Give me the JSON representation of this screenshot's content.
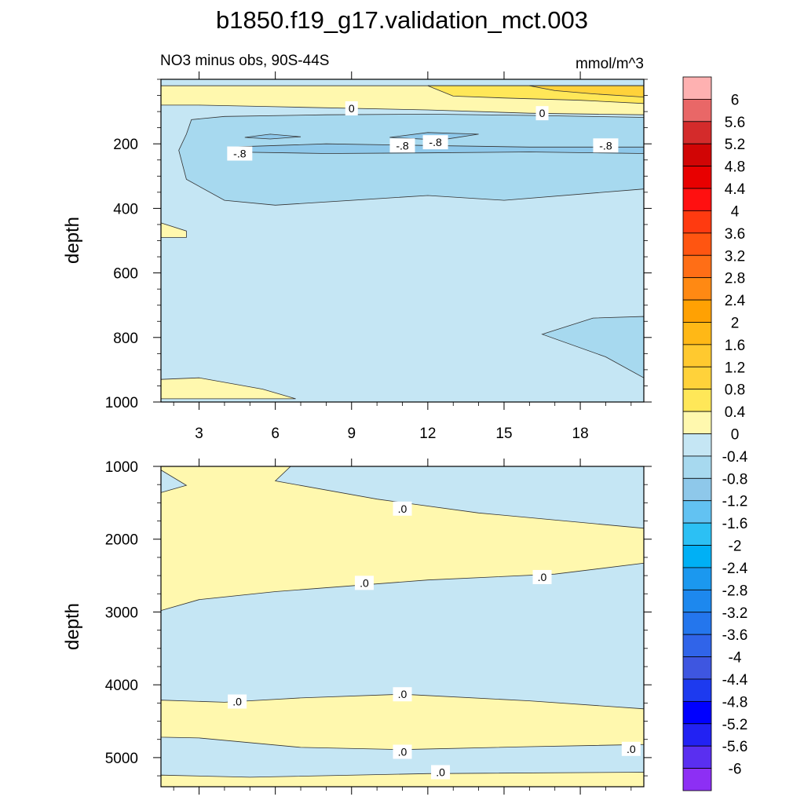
{
  "title": "b1850.f19_g17.validation_mct.003",
  "subtitle_left": "NO3 minus obs, 90S-44S",
  "subtitle_right": "mmol/m^3",
  "colors": {
    "zero_to_neg04": "#c5e6f4",
    "neg04_to_neg08": "#a7d9ef",
    "neg08_to_neg12": "#8ec8ea",
    "zero_to_04": "#fff8ae",
    "pos04_to_08": "#ffe758",
    "pos08_to_12": "#ffd23a"
  },
  "chart_data": [
    {
      "type": "heatmap",
      "panel": "upper",
      "variable": "NO3 minus obs",
      "region": "90S-44S",
      "units": "mmol/m^3",
      "ylabel": "depth",
      "ylim": [
        0,
        1000
      ],
      "y_inverted": true,
      "xlim": [
        1.5,
        20.5
      ],
      "x_ticks": [
        3,
        6,
        9,
        12,
        15,
        18
      ],
      "y_ticks": [
        200,
        400,
        600,
        800,
        1000
      ],
      "contour_labels": [
        {
          "text": "0",
          "x": 9.0,
          "y": 90
        },
        {
          "text": "0",
          "x": 16.5,
          "y": 105
        },
        {
          "text": "-.8",
          "x": 4.6,
          "y": 230
        },
        {
          "text": "-.8",
          "x": 11.0,
          "y": 205
        },
        {
          "text": "-.8",
          "x": 12.3,
          "y": 195
        },
        {
          "text": "-.8",
          "x": 19.0,
          "y": 205
        }
      ],
      "regions": [
        {
          "range": "0 to 0.4",
          "color_key": "zero_to_04",
          "poly": [
            [
              1.5,
              20
            ],
            [
              20.5,
              20
            ],
            [
              20.5,
              110
            ],
            [
              16,
              105
            ],
            [
              12,
              95
            ],
            [
              6,
              85
            ],
            [
              3,
              80
            ],
            [
              1.5,
              80
            ]
          ]
        },
        {
          "range": "0.4 to 0.8",
          "color_key": "pos04_to_08",
          "poly": [
            [
              12,
              20
            ],
            [
              20.5,
              20
            ],
            [
              20.5,
              75
            ],
            [
              18,
              65
            ],
            [
              15,
              58
            ],
            [
              13,
              52
            ]
          ]
        },
        {
          "range": "0.8 to 1.2",
          "color_key": "pos08_to_12",
          "poly": [
            [
              16,
              20
            ],
            [
              20.5,
              20
            ],
            [
              20.5,
              55
            ],
            [
              18.5,
              45
            ],
            [
              17,
              35
            ]
          ]
        },
        {
          "range": "-0.4 to -0.8",
          "color_key": "neg04_to_neg08",
          "poly": [
            [
              2.5,
              170
            ],
            [
              2.7,
              125
            ],
            [
              4,
              115
            ],
            [
              8,
              110
            ],
            [
              12,
              108
            ],
            [
              16,
              112
            ],
            [
              20.5,
              118
            ],
            [
              20.5,
              340
            ],
            [
              15,
              375
            ],
            [
              12,
              360
            ],
            [
              6,
              390
            ],
            [
              4,
              375
            ],
            [
              2.5,
              310
            ],
            [
              2.2,
              220
            ]
          ]
        },
        {
          "range": "-0.8 to -1.2",
          "color_key": "neg08_to_neg12",
          "poly": [
            [
              4.2,
              210
            ],
            [
              8,
              200
            ],
            [
              12,
              205
            ],
            [
              16,
              210
            ],
            [
              20.5,
              210
            ],
            [
              20.5,
              230
            ],
            [
              16,
              225
            ],
            [
              12,
              228
            ],
            [
              8,
              230
            ],
            [
              4.2,
              225
            ]
          ]
        },
        {
          "range": "-0.8 to -1.2",
          "color_key": "neg08_to_neg12",
          "poly": [
            [
              4.8,
              180
            ],
            [
              5.8,
              170
            ],
            [
              7,
              178
            ],
            [
              5.8,
              185
            ]
          ]
        },
        {
          "range": "-0.8 to -1.2",
          "color_key": "neg08_to_neg12",
          "poly": [
            [
              10.5,
              180
            ],
            [
              12,
              165
            ],
            [
              14,
              170
            ],
            [
              12.5,
              188
            ]
          ]
        },
        {
          "range": "-0.4 to -0.8",
          "color_key": "neg04_to_neg08",
          "poly": [
            [
              16.5,
              790
            ],
            [
              18.5,
              740
            ],
            [
              20.5,
              735
            ],
            [
              20.5,
              925
            ],
            [
              19,
              860
            ]
          ]
        },
        {
          "range": "0 to 0.4",
          "color_key": "zero_to_04",
          "poly": [
            [
              1.5,
              930
            ],
            [
              3,
              925
            ],
            [
              5.5,
              960
            ],
            [
              6.8,
              990
            ],
            [
              1.5,
              990
            ]
          ]
        },
        {
          "range": "0 to 0.4",
          "color_key": "zero_to_04",
          "poly": [
            [
              1.5,
              445
            ],
            [
              2.5,
              470
            ],
            [
              2.5,
              490
            ],
            [
              1.5,
              490
            ]
          ]
        }
      ]
    },
    {
      "type": "heatmap",
      "panel": "lower",
      "ylabel": "depth",
      "ylim": [
        1000,
        5400
      ],
      "y_inverted": true,
      "y_ticks": [
        1000,
        2000,
        3000,
        4000,
        5000
      ],
      "contour_labels": [
        {
          "text": ".0",
          "x": 11.0,
          "y": 1580
        },
        {
          "text": ".0",
          "x": 9.5,
          "y": 2600
        },
        {
          "text": ".0",
          "x": 16.5,
          "y": 2520
        },
        {
          "text": ".0",
          "x": 4.5,
          "y": 4230
        },
        {
          "text": ".0",
          "x": 11.0,
          "y": 4130
        },
        {
          "text": ".0",
          "x": 11.0,
          "y": 4920
        },
        {
          "text": ".0",
          "x": 20.0,
          "y": 4880
        },
        {
          "text": ".0",
          "x": 12.5,
          "y": 5200
        }
      ],
      "regions": [
        {
          "range": "0 to 0.4",
          "color_key": "zero_to_04",
          "poly": [
            [
              1.5,
              1000
            ],
            [
              6.6,
              1000
            ],
            [
              6,
              1200
            ],
            [
              10,
              1450
            ],
            [
              14,
              1640
            ],
            [
              20.5,
              1850
            ],
            [
              20.5,
              2330
            ],
            [
              17,
              2480
            ],
            [
              12,
              2560
            ],
            [
              6,
              2720
            ],
            [
              3,
              2830
            ],
            [
              1.5,
              2980
            ]
          ]
        },
        {
          "range": "-0.4 to 0",
          "color_key": "zero_to_neg04",
          "poly": [
            [
              1.5,
              1050
            ],
            [
              2.5,
              1260
            ],
            [
              1.5,
              1360
            ]
          ]
        },
        {
          "range": "0 to 0.4",
          "color_key": "zero_to_04",
          "poly": [
            [
              1.5,
              4210
            ],
            [
              4,
              4240
            ],
            [
              7,
              4180
            ],
            [
              11,
              4130
            ],
            [
              16,
              4220
            ],
            [
              20.5,
              4330
            ],
            [
              20.5,
              4820
            ],
            [
              16,
              4850
            ],
            [
              11,
              4890
            ],
            [
              7,
              4860
            ],
            [
              3,
              4730
            ],
            [
              1.5,
              4720
            ]
          ]
        },
        {
          "range": "0 to 0.4",
          "color_key": "zero_to_04",
          "poly": [
            [
              1.5,
              5240
            ],
            [
              5,
              5270
            ],
            [
              12,
              5220
            ],
            [
              20.5,
              5200
            ],
            [
              20.5,
              5400
            ],
            [
              1.5,
              5400
            ]
          ]
        }
      ]
    }
  ],
  "colorbar": {
    "labels": [
      "6",
      "5.6",
      "5.2",
      "4.8",
      "4.4",
      "4",
      "3.6",
      "3.2",
      "2.8",
      "2.4",
      "2",
      "1.6",
      "1.2",
      "0.8",
      "0.4",
      "0",
      "-0.4",
      "-0.8",
      "-1.2",
      "-1.6",
      "-2",
      "-2.4",
      "-2.8",
      "-3.2",
      "-3.6",
      "-4",
      "-4.4",
      "-4.8",
      "-5.2",
      "-5.6",
      "-6"
    ],
    "colors": [
      "#feb1b1",
      "#e96767",
      "#d42b2b",
      "#d10505",
      "#e80000",
      "#ff1010",
      "#ff3a10",
      "#ff5511",
      "#ff6e16",
      "#ff8913",
      "#ffa103",
      "#ffb816",
      "#ffc92f",
      "#ffd23a",
      "#ffe758",
      "#fff8ae",
      "#c5e6f4",
      "#a7d9ef",
      "#8ec8ea",
      "#62c2f2",
      "#2cc0f4",
      "#00b0f5",
      "#1b98ef",
      "#1d88ee",
      "#2476ed",
      "#3064e9",
      "#3e56e0",
      "#1d3aef",
      "#0000ff",
      "#2222f3",
      "#5a2ff0",
      "#8d2ff4"
    ]
  }
}
